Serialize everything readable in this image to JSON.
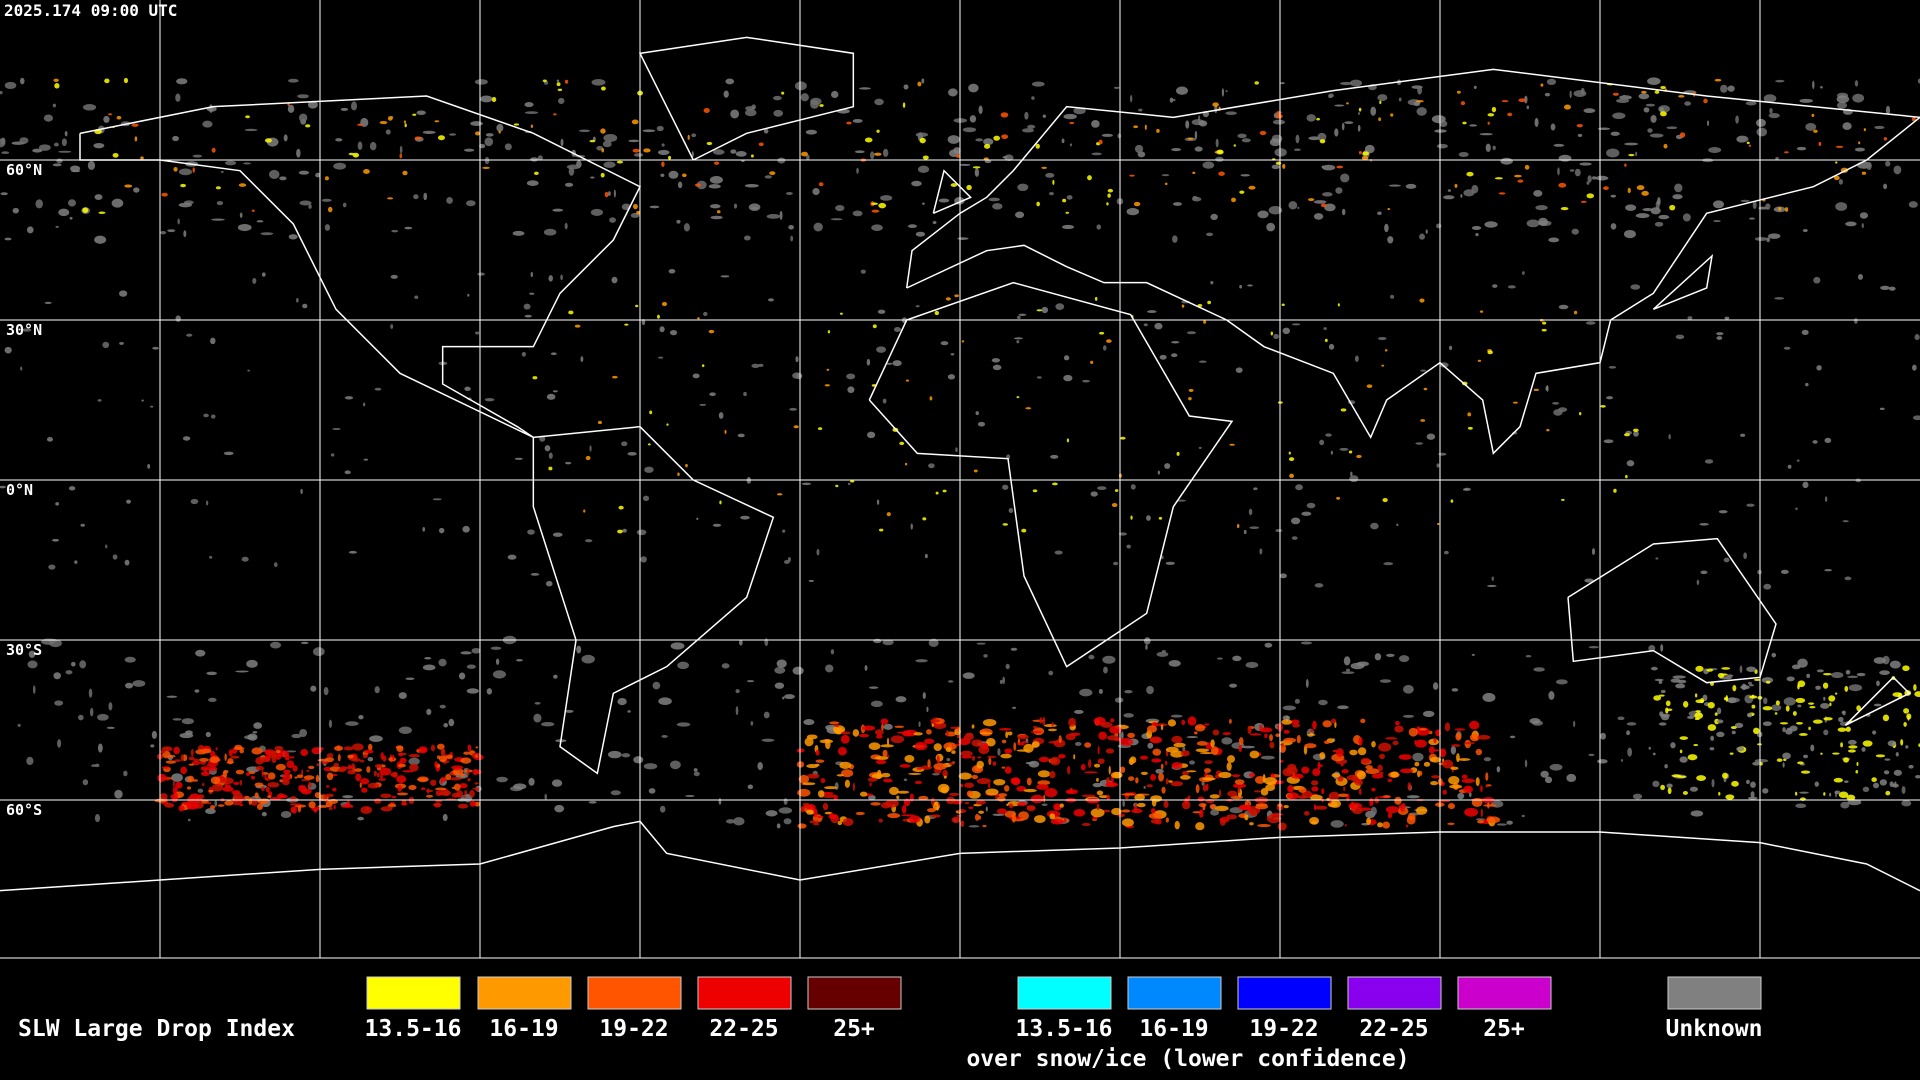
{
  "header": {
    "timestamp": "2025.174 09:00 UTC"
  },
  "map": {
    "lat_labels": [
      "60°N",
      "30°N",
      "0°N",
      "30°S",
      "60°S"
    ]
  },
  "legend": {
    "title": "SLW Large Drop Index",
    "groups": [
      {
        "items": [
          {
            "label": "13.5-16",
            "color": "#ffff00"
          },
          {
            "label": "16-19",
            "color": "#ff9900"
          },
          {
            "label": "19-22",
            "color": "#ff5500"
          },
          {
            "label": "22-25",
            "color": "#ee0000"
          },
          {
            "label": "25+",
            "color": "#660000"
          }
        ]
      },
      {
        "items": [
          {
            "label": "13.5-16",
            "color": "#00ffff"
          },
          {
            "label": "16-19",
            "color": "#0088ff"
          },
          {
            "label": "19-22",
            "color": "#0000ff"
          },
          {
            "label": "22-25",
            "color": "#8800ee"
          },
          {
            "label": "25+",
            "color": "#cc00cc"
          }
        ]
      }
    ],
    "snow_note": "over snow/ice (lower confidence)",
    "unknown": {
      "label": "Unknown",
      "color": "#808080"
    }
  }
}
